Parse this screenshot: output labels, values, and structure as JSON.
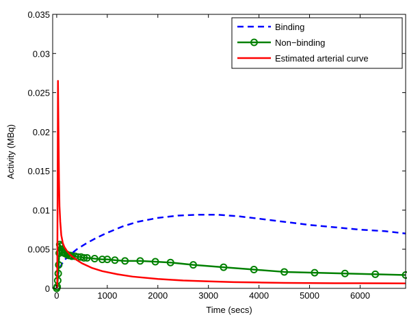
{
  "chart_data": {
    "type": "line",
    "xlabel": "Time (secs)",
    "ylabel": "Activity (MBq)",
    "xlim": [
      -80,
      6900
    ],
    "ylim": [
      0,
      0.035
    ],
    "xticks": [
      0,
      1000,
      2000,
      3000,
      4000,
      5000,
      6000
    ],
    "xtick_labels": [
      "0",
      "1000",
      "2000",
      "3000",
      "4000",
      "5000",
      "6000"
    ],
    "yticks": [
      0,
      0.005,
      0.01,
      0.015,
      0.02,
      0.025,
      0.03,
      0.035
    ],
    "ytick_labels": [
      "0",
      "0.005",
      "0.01",
      "0.015",
      "0.02",
      "0.025",
      "0.03",
      "0.035"
    ],
    "grid": false,
    "legend_position": "top-right",
    "series": [
      {
        "name": "Binding",
        "color": "#0000ff",
        "style": "dashed",
        "marker": "none",
        "x": [
          0,
          10,
          30,
          60,
          100,
          150,
          250,
          400,
          600,
          800,
          1000,
          1300,
          1600,
          2000,
          2400,
          2800,
          3200,
          3600,
          4000,
          4500,
          5000,
          5500,
          6000,
          6500,
          6900
        ],
        "y": [
          0,
          0.0008,
          0.0018,
          0.0026,
          0.0031,
          0.0036,
          0.0042,
          0.005,
          0.0058,
          0.0065,
          0.0071,
          0.0079,
          0.0085,
          0.009,
          0.0093,
          0.0094,
          0.0094,
          0.0092,
          0.0089,
          0.0085,
          0.0081,
          0.0078,
          0.0075,
          0.0073,
          0.007
        ]
      },
      {
        "name": "Non−binding",
        "color": "#008000",
        "style": "solid",
        "marker": "circle",
        "x": [
          0,
          10,
          20,
          30,
          40,
          50,
          60,
          80,
          100,
          120,
          150,
          180,
          210,
          240,
          270,
          300,
          360,
          420,
          480,
          540,
          600,
          750,
          900,
          1000,
          1150,
          1350,
          1650,
          1950,
          2250,
          2700,
          3300,
          3900,
          4500,
          5100,
          5700,
          6300,
          6900
        ],
        "y": [
          0,
          0.0002,
          0.001,
          0.0019,
          0.003,
          0.0045,
          0.0056,
          0.0054,
          0.0049,
          0.0046,
          0.0045,
          0.0044,
          0.0043,
          0.0042,
          0.0042,
          0.0041,
          0.0041,
          0.004,
          0.004,
          0.0039,
          0.0039,
          0.0038,
          0.0037,
          0.0037,
          0.0036,
          0.0035,
          0.0035,
          0.0034,
          0.0033,
          0.003,
          0.0027,
          0.0024,
          0.0021,
          0.002,
          0.0019,
          0.0018,
          0.0017
        ]
      },
      {
        "name": "Estimated arterial curve",
        "color": "#ff0000",
        "style": "solid",
        "marker": "none",
        "x": [
          0,
          10,
          15,
          25,
          35,
          45,
          55,
          70,
          90,
          120,
          150,
          200,
          250,
          300,
          400,
          500,
          700,
          900,
          1200,
          1500,
          2000,
          2500,
          3000,
          3500,
          4000,
          4500,
          5000,
          5500,
          6000,
          6500,
          6900
        ],
        "y": [
          0,
          0.0003,
          0.008,
          0.0265,
          0.02,
          0.014,
          0.0105,
          0.0085,
          0.0068,
          0.0058,
          0.0053,
          0.0048,
          0.0044,
          0.0041,
          0.0036,
          0.0032,
          0.0026,
          0.0022,
          0.0018,
          0.0015,
          0.0012,
          0.001,
          0.0009,
          0.0008,
          0.00075,
          0.0007,
          0.00068,
          0.00066,
          0.00065,
          0.00064,
          0.00063
        ]
      }
    ]
  }
}
